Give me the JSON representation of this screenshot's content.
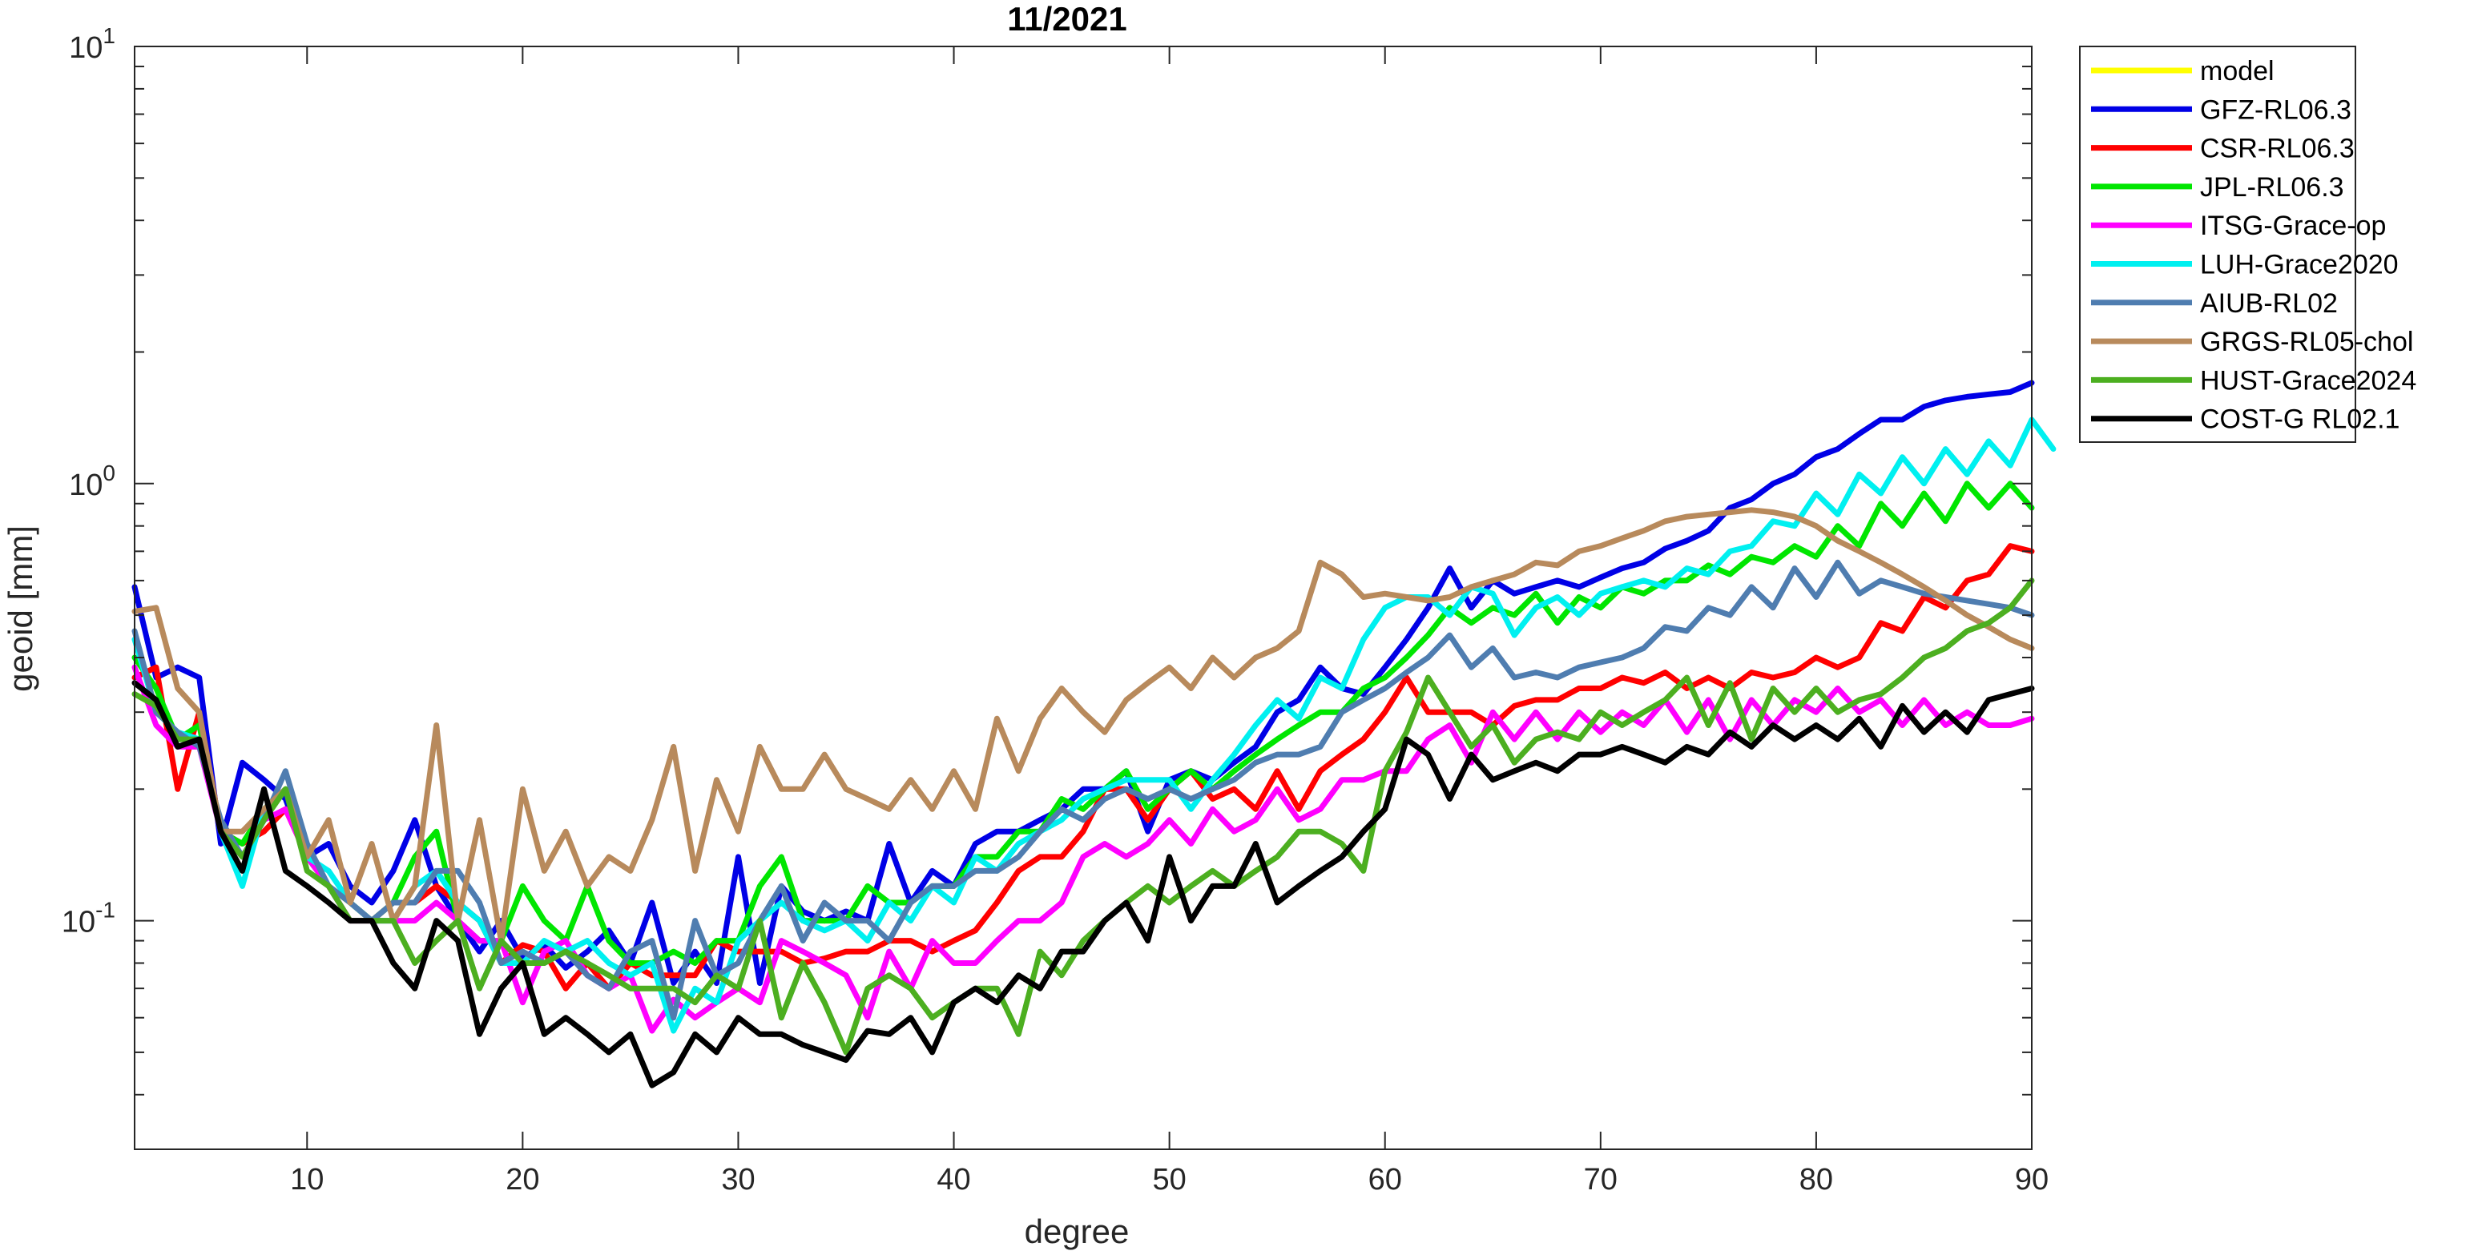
{
  "chart_data": {
    "type": "line",
    "title": "11/2021",
    "xlabel": "degree",
    "ylabel": "geoid [mm]",
    "xlim": [
      2,
      90
    ],
    "ylim": [
      0.03,
      10
    ],
    "yscale": "log",
    "x_ticks": [
      10,
      20,
      30,
      40,
      50,
      60,
      70,
      80,
      90
    ],
    "y_ticks": [
      {
        "value": 0.1,
        "base": "10",
        "exp": "-1"
      },
      {
        "value": 1,
        "base": "10",
        "exp": "0"
      },
      {
        "value": 10,
        "base": "10",
        "exp": "1"
      }
    ],
    "grid": false,
    "legend_position": "outside-top-right",
    "x_start": 2,
    "series": [
      {
        "name": "model",
        "color": "#FFFF00",
        "values": []
      },
      {
        "name": "GFZ-RL06.3",
        "color": "#0000E6",
        "values": [
          0.58,
          0.36,
          0.38,
          0.36,
          0.15,
          0.23,
          0.21,
          0.19,
          0.14,
          0.15,
          0.12,
          0.11,
          0.13,
          0.17,
          0.12,
          0.1,
          0.085,
          0.1,
          0.082,
          0.088,
          0.078,
          0.085,
          0.095,
          0.08,
          0.11,
          0.072,
          0.085,
          0.072,
          0.14,
          0.072,
          0.12,
          0.105,
          0.1,
          0.105,
          0.1,
          0.15,
          0.11,
          0.13,
          0.12,
          0.15,
          0.16,
          0.16,
          0.17,
          0.18,
          0.2,
          0.2,
          0.22,
          0.16,
          0.21,
          0.22,
          0.21,
          0.23,
          0.25,
          0.3,
          0.32,
          0.38,
          0.34,
          0.33,
          0.38,
          0.44,
          0.52,
          0.64,
          0.52,
          0.6,
          0.56,
          0.58,
          0.6,
          0.58,
          0.61,
          0.64,
          0.66,
          0.71,
          0.74,
          0.78,
          0.88,
          0.92,
          1.0,
          1.05,
          1.15,
          1.2,
          1.3,
          1.4,
          1.4,
          1.5,
          1.55,
          1.58,
          1.6,
          1.62,
          1.7
        ]
      },
      {
        "name": "CSR-RL06.3",
        "color": "#FF0000",
        "values": [
          0.36,
          0.38,
          0.2,
          0.3,
          0.16,
          0.15,
          0.16,
          0.18,
          0.14,
          0.12,
          0.11,
          0.1,
          0.11,
          0.11,
          0.12,
          0.11,
          0.1,
          0.08,
          0.088,
          0.085,
          0.07,
          0.08,
          0.07,
          0.08,
          0.075,
          0.075,
          0.075,
          0.09,
          0.085,
          0.085,
          0.085,
          0.08,
          0.082,
          0.085,
          0.085,
          0.09,
          0.09,
          0.085,
          0.09,
          0.095,
          0.11,
          0.13,
          0.14,
          0.14,
          0.16,
          0.2,
          0.2,
          0.17,
          0.2,
          0.22,
          0.19,
          0.2,
          0.18,
          0.22,
          0.18,
          0.22,
          0.24,
          0.26,
          0.3,
          0.36,
          0.3,
          0.3,
          0.3,
          0.28,
          0.31,
          0.32,
          0.32,
          0.34,
          0.34,
          0.36,
          0.35,
          0.37,
          0.34,
          0.36,
          0.34,
          0.37,
          0.36,
          0.37,
          0.4,
          0.38,
          0.4,
          0.48,
          0.46,
          0.55,
          0.52,
          0.6,
          0.62,
          0.72,
          0.7
        ]
      },
      {
        "name": "JPL-RL06.3",
        "color": "#00E600",
        "values": [
          0.4,
          0.34,
          0.26,
          0.28,
          0.16,
          0.15,
          0.18,
          0.2,
          0.14,
          0.12,
          0.11,
          0.1,
          0.11,
          0.14,
          0.16,
          0.1,
          0.09,
          0.09,
          0.12,
          0.1,
          0.09,
          0.12,
          0.09,
          0.08,
          0.08,
          0.085,
          0.08,
          0.09,
          0.09,
          0.12,
          0.14,
          0.1,
          0.1,
          0.1,
          0.12,
          0.11,
          0.11,
          0.12,
          0.12,
          0.14,
          0.14,
          0.16,
          0.16,
          0.19,
          0.18,
          0.2,
          0.22,
          0.18,
          0.2,
          0.22,
          0.2,
          0.22,
          0.24,
          0.26,
          0.28,
          0.3,
          0.3,
          0.34,
          0.36,
          0.4,
          0.45,
          0.52,
          0.48,
          0.52,
          0.5,
          0.56,
          0.48,
          0.55,
          0.52,
          0.58,
          0.56,
          0.6,
          0.6,
          0.65,
          0.62,
          0.68,
          0.66,
          0.72,
          0.68,
          0.8,
          0.72,
          0.9,
          0.8,
          0.95,
          0.82,
          1.0,
          0.88,
          1.0,
          0.88
        ]
      },
      {
        "name": "ITSG-Grace-op",
        "color": "#FF00FF",
        "values": [
          0.38,
          0.28,
          0.25,
          0.25,
          0.16,
          0.14,
          0.17,
          0.18,
          0.14,
          0.12,
          0.1,
          0.1,
          0.1,
          0.1,
          0.11,
          0.1,
          0.09,
          0.09,
          0.065,
          0.085,
          0.09,
          0.075,
          0.07,
          0.075,
          0.056,
          0.066,
          0.06,
          0.065,
          0.07,
          0.065,
          0.09,
          0.085,
          0.08,
          0.075,
          0.06,
          0.085,
          0.07,
          0.09,
          0.08,
          0.08,
          0.09,
          0.1,
          0.1,
          0.11,
          0.14,
          0.15,
          0.14,
          0.15,
          0.17,
          0.15,
          0.18,
          0.16,
          0.17,
          0.2,
          0.17,
          0.18,
          0.21,
          0.21,
          0.22,
          0.22,
          0.26,
          0.28,
          0.23,
          0.3,
          0.26,
          0.3,
          0.26,
          0.3,
          0.27,
          0.3,
          0.28,
          0.32,
          0.27,
          0.32,
          0.26,
          0.32,
          0.28,
          0.32,
          0.3,
          0.34,
          0.3,
          0.32,
          0.28,
          0.32,
          0.28,
          0.3,
          0.28,
          0.28,
          0.29
        ]
      },
      {
        "name": "LUH-Grace2020",
        "color": "#00F0F0",
        "values": [
          0.44,
          0.3,
          0.27,
          0.26,
          0.16,
          0.12,
          0.18,
          0.2,
          0.14,
          0.13,
          0.11,
          0.1,
          0.1,
          0.12,
          0.13,
          0.11,
          0.1,
          0.08,
          0.08,
          0.09,
          0.085,
          0.09,
          0.08,
          0.075,
          0.08,
          0.056,
          0.07,
          0.065,
          0.09,
          0.1,
          0.11,
          0.1,
          0.095,
          0.1,
          0.09,
          0.11,
          0.1,
          0.12,
          0.11,
          0.14,
          0.13,
          0.15,
          0.16,
          0.17,
          0.19,
          0.2,
          0.21,
          0.21,
          0.21,
          0.18,
          0.21,
          0.24,
          0.28,
          0.32,
          0.29,
          0.36,
          0.34,
          0.44,
          0.52,
          0.55,
          0.55,
          0.5,
          0.58,
          0.56,
          0.45,
          0.52,
          0.55,
          0.5,
          0.56,
          0.58,
          0.6,
          0.58,
          0.64,
          0.62,
          0.7,
          0.72,
          0.82,
          0.8,
          0.95,
          0.85,
          1.05,
          0.95,
          1.15,
          1.0,
          1.2,
          1.05,
          1.25,
          1.1,
          1.4,
          1.2
        ]
      },
      {
        "name": "AIUB-RL02",
        "color": "#4F7DB0",
        "values": [
          0.46,
          0.3,
          0.27,
          0.25,
          0.17,
          0.14,
          0.17,
          0.22,
          0.15,
          0.12,
          0.11,
          0.1,
          0.11,
          0.11,
          0.13,
          0.13,
          0.11,
          0.08,
          0.085,
          0.08,
          0.085,
          0.075,
          0.07,
          0.085,
          0.09,
          0.06,
          0.1,
          0.075,
          0.08,
          0.1,
          0.12,
          0.09,
          0.11,
          0.1,
          0.1,
          0.09,
          0.11,
          0.12,
          0.12,
          0.13,
          0.13,
          0.14,
          0.16,
          0.18,
          0.17,
          0.19,
          0.2,
          0.19,
          0.2,
          0.19,
          0.2,
          0.21,
          0.23,
          0.24,
          0.24,
          0.25,
          0.3,
          0.32,
          0.34,
          0.37,
          0.4,
          0.45,
          0.38,
          0.42,
          0.36,
          0.37,
          0.36,
          0.38,
          0.39,
          0.4,
          0.42,
          0.47,
          0.46,
          0.52,
          0.5,
          0.58,
          0.52,
          0.64,
          0.55,
          0.66,
          0.56,
          0.6,
          0.58,
          0.56,
          0.55,
          0.54,
          0.53,
          0.52,
          0.5
        ]
      },
      {
        "name": "GRGS-RL05-chol",
        "color": "#B88A5C",
        "values": [
          0.51,
          0.52,
          0.34,
          0.3,
          0.16,
          0.16,
          0.18,
          0.2,
          0.14,
          0.17,
          0.11,
          0.15,
          0.1,
          0.12,
          0.28,
          0.1,
          0.17,
          0.09,
          0.2,
          0.13,
          0.16,
          0.12,
          0.14,
          0.13,
          0.17,
          0.25,
          0.13,
          0.21,
          0.16,
          0.25,
          0.2,
          0.2,
          0.24,
          0.2,
          0.19,
          0.18,
          0.21,
          0.18,
          0.22,
          0.18,
          0.29,
          0.22,
          0.29,
          0.34,
          0.3,
          0.27,
          0.32,
          0.35,
          0.38,
          0.34,
          0.4,
          0.36,
          0.4,
          0.42,
          0.46,
          0.66,
          0.62,
          0.55,
          0.56,
          0.55,
          0.54,
          0.55,
          0.58,
          0.6,
          0.62,
          0.66,
          0.65,
          0.7,
          0.72,
          0.75,
          0.78,
          0.82,
          0.84,
          0.85,
          0.86,
          0.87,
          0.86,
          0.84,
          0.8,
          0.74,
          0.7,
          0.66,
          0.62,
          0.58,
          0.54,
          0.5,
          0.47,
          0.44,
          0.42
        ]
      },
      {
        "name": "HUST-Grace2024",
        "color": "#4CAF20",
        "values": [
          0.33,
          0.31,
          0.26,
          0.26,
          0.16,
          0.14,
          0.17,
          0.2,
          0.13,
          0.12,
          0.1,
          0.1,
          0.1,
          0.08,
          0.09,
          0.1,
          0.07,
          0.09,
          0.08,
          0.08,
          0.085,
          0.08,
          0.075,
          0.07,
          0.07,
          0.07,
          0.065,
          0.075,
          0.07,
          0.1,
          0.06,
          0.08,
          0.065,
          0.05,
          0.07,
          0.075,
          0.07,
          0.06,
          0.065,
          0.07,
          0.07,
          0.055,
          0.085,
          0.075,
          0.09,
          0.1,
          0.11,
          0.12,
          0.11,
          0.12,
          0.13,
          0.12,
          0.13,
          0.14,
          0.16,
          0.16,
          0.15,
          0.13,
          0.22,
          0.27,
          0.36,
          0.3,
          0.25,
          0.28,
          0.23,
          0.26,
          0.27,
          0.26,
          0.3,
          0.28,
          0.3,
          0.32,
          0.36,
          0.28,
          0.35,
          0.26,
          0.34,
          0.3,
          0.34,
          0.3,
          0.32,
          0.33,
          0.36,
          0.4,
          0.42,
          0.46,
          0.48,
          0.52,
          0.6
        ]
      },
      {
        "name": "COST-G RL02.1",
        "color": "#000000",
        "values": [
          0.35,
          0.32,
          0.25,
          0.26,
          0.16,
          0.13,
          0.2,
          0.13,
          0.12,
          0.11,
          0.1,
          0.1,
          0.08,
          0.07,
          0.1,
          0.09,
          0.055,
          0.07,
          0.08,
          0.055,
          0.06,
          0.055,
          0.05,
          0.055,
          0.042,
          0.045,
          0.055,
          0.05,
          0.06,
          0.055,
          0.055,
          0.052,
          0.05,
          0.048,
          0.056,
          0.055,
          0.06,
          0.05,
          0.065,
          0.07,
          0.065,
          0.075,
          0.07,
          0.085,
          0.085,
          0.1,
          0.11,
          0.09,
          0.14,
          0.1,
          0.12,
          0.12,
          0.15,
          0.11,
          0.12,
          0.13,
          0.14,
          0.16,
          0.18,
          0.26,
          0.24,
          0.19,
          0.24,
          0.21,
          0.22,
          0.23,
          0.22,
          0.24,
          0.24,
          0.25,
          0.24,
          0.23,
          0.25,
          0.24,
          0.27,
          0.25,
          0.28,
          0.26,
          0.28,
          0.26,
          0.29,
          0.25,
          0.31,
          0.27,
          0.3,
          0.27,
          0.32,
          0.33,
          0.34
        ]
      }
    ]
  }
}
